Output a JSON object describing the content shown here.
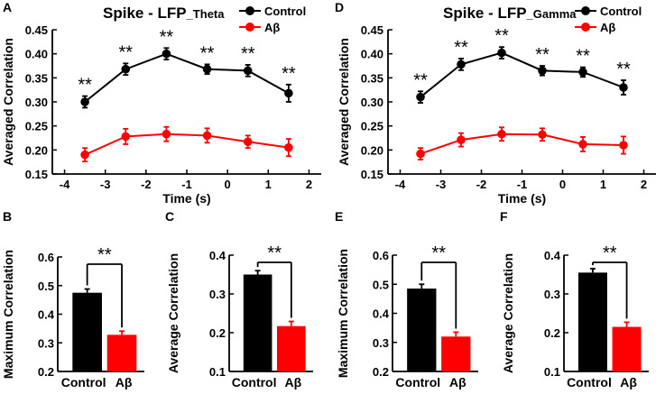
{
  "panels": {
    "A": "A",
    "B": "B",
    "C": "C",
    "D": "D",
    "E": "E",
    "F": "F"
  },
  "colors": {
    "control": "#000000",
    "abeta": "#ff0000"
  },
  "chart_data": [
    {
      "id": "A",
      "type": "line",
      "title_main": "Spike  -  LFP",
      "title_sub": "_Theta",
      "xlabel": "Time (s)",
      "ylabel": "Averaged Correlation",
      "xlim": [
        -4.3,
        2.3
      ],
      "ylim": [
        0.15,
        0.45
      ],
      "xticks": [
        -4,
        -3,
        -2,
        -1,
        0,
        1,
        2
      ],
      "xtick_labels": [
        "-4",
        "-3",
        "-2",
        "-1",
        "0",
        "1",
        "2"
      ],
      "yticks": [
        0.15,
        0.2,
        0.25,
        0.3,
        0.35,
        0.4,
        0.45
      ],
      "ytick_labels": [
        "0.15",
        "0.20",
        "0.25",
        "0.30",
        "0.35",
        "0.40",
        "0.45"
      ],
      "x": [
        -3.5,
        -2.5,
        -1.5,
        -0.5,
        0.5,
        1.5
      ],
      "series": [
        {
          "name": "Control",
          "color": "#000000",
          "values": [
            0.3,
            0.368,
            0.4,
            0.368,
            0.365,
            0.318
          ],
          "errors": [
            0.012,
            0.012,
            0.012,
            0.01,
            0.012,
            0.018
          ]
        },
        {
          "name": "Aβ",
          "color": "#ff0000",
          "values": [
            0.19,
            0.228,
            0.233,
            0.23,
            0.217,
            0.205
          ],
          "errors": [
            0.014,
            0.016,
            0.015,
            0.015,
            0.013,
            0.018
          ]
        }
      ],
      "annotations": [
        "**",
        "**",
        "**",
        "**",
        "**",
        "**"
      ],
      "legend": [
        "Control",
        "Aβ"
      ]
    },
    {
      "id": "D",
      "type": "line",
      "title_main": "Spike  -  LFP",
      "title_sub": "_Gamma",
      "xlabel": "Time (s)",
      "ylabel": "Averaged Correlation",
      "xlim": [
        -4.3,
        2.3
      ],
      "ylim": [
        0.15,
        0.45
      ],
      "xticks": [
        -4,
        -3,
        -2,
        -1,
        0,
        1,
        2
      ],
      "xtick_labels": [
        "-4",
        "-3",
        "-2",
        "-1",
        "0",
        "1",
        "2"
      ],
      "yticks": [
        0.15,
        0.2,
        0.25,
        0.3,
        0.35,
        0.4,
        0.45
      ],
      "ytick_labels": [
        "0.15",
        "0.20",
        "0.25",
        "0.30",
        "0.35",
        "0.40",
        "0.45"
      ],
      "x": [
        -3.5,
        -2.5,
        -1.5,
        -0.5,
        0.5,
        1.5
      ],
      "series": [
        {
          "name": "Control",
          "color": "#000000",
          "values": [
            0.31,
            0.378,
            0.402,
            0.365,
            0.362,
            0.33
          ],
          "errors": [
            0.012,
            0.012,
            0.012,
            0.01,
            0.01,
            0.015
          ]
        },
        {
          "name": "Aβ",
          "color": "#ff0000",
          "values": [
            0.192,
            0.221,
            0.233,
            0.232,
            0.212,
            0.21
          ],
          "errors": [
            0.012,
            0.014,
            0.014,
            0.013,
            0.015,
            0.018
          ]
        }
      ],
      "annotations": [
        "**",
        "**",
        "**",
        "**",
        "**",
        "**"
      ],
      "legend": [
        "Control",
        "Aβ"
      ]
    },
    {
      "id": "B",
      "type": "bar",
      "ylabel": "Maximum Correlation",
      "categories": [
        "Control",
        "Aβ"
      ],
      "values": [
        0.475,
        0.328
      ],
      "errors": [
        0.013,
        0.013
      ],
      "colors": [
        "#000000",
        "#ff0000"
      ],
      "ylim": [
        0.2,
        0.6
      ],
      "yticks": [
        0.2,
        0.3,
        0.4,
        0.5,
        0.6
      ],
      "ytick_labels": [
        "0.2",
        "0.3",
        "0.4",
        "0.5",
        "0.6"
      ],
      "significance": "**"
    },
    {
      "id": "C",
      "type": "bar",
      "ylabel": "Average Correlation",
      "categories": [
        "Control",
        "Aβ"
      ],
      "values": [
        0.35,
        0.217
      ],
      "errors": [
        0.01,
        0.012
      ],
      "colors": [
        "#000000",
        "#ff0000"
      ],
      "ylim": [
        0.1,
        0.4
      ],
      "yticks": [
        0.1,
        0.2,
        0.3,
        0.4
      ],
      "ytick_labels": [
        "0.1",
        "0.2",
        "0.3",
        "0.4"
      ],
      "significance": "**"
    },
    {
      "id": "E",
      "type": "bar",
      "ylabel": "Maximum Correlation",
      "categories": [
        "Control",
        "Aβ"
      ],
      "values": [
        0.485,
        0.32
      ],
      "errors": [
        0.015,
        0.015
      ],
      "colors": [
        "#000000",
        "#ff0000"
      ],
      "ylim": [
        0.2,
        0.6
      ],
      "yticks": [
        0.2,
        0.3,
        0.4,
        0.5,
        0.6
      ],
      "ytick_labels": [
        "0.2",
        "0.3",
        "0.4",
        "0.5",
        "0.6"
      ],
      "significance": "**"
    },
    {
      "id": "F",
      "type": "bar",
      "ylabel": "Average Correlation",
      "categories": [
        "Control",
        "Aβ"
      ],
      "values": [
        0.355,
        0.215
      ],
      "errors": [
        0.01,
        0.012
      ],
      "colors": [
        "#000000",
        "#ff0000"
      ],
      "ylim": [
        0.1,
        0.4
      ],
      "yticks": [
        0.1,
        0.2,
        0.3,
        0.4
      ],
      "ytick_labels": [
        "0.1",
        "0.2",
        "0.3",
        "0.4"
      ],
      "significance": "**"
    }
  ]
}
